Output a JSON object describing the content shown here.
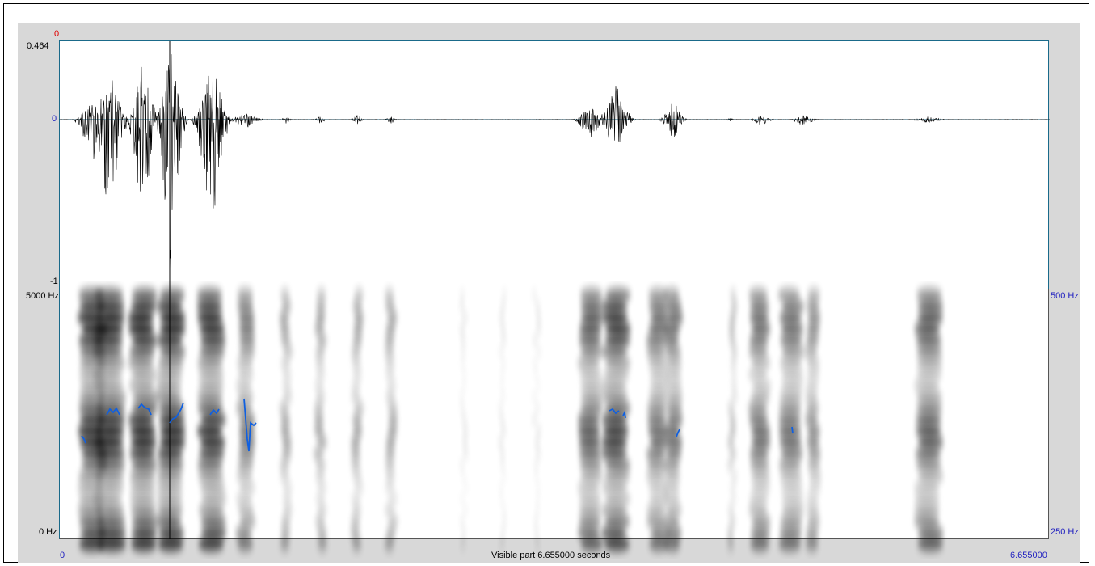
{
  "waveform": {
    "top_value_label": "0",
    "y_max_label": "0.464",
    "y_zero_label": "0",
    "y_min_label": "-1"
  },
  "spectrogram": {
    "freq_top_label": "5000 Hz",
    "freq_bottom_label": "0 Hz",
    "pitch_top_label": "500 Hz",
    "pitch_bottom_label": "250 Hz"
  },
  "time_axis": {
    "start_label": "0",
    "end_label": "6.655000",
    "visible_part_label": "Visible part 6.655000 seconds"
  },
  "colors": {
    "waveform": "#000000",
    "pitch": "#1060e0",
    "axis_red": "#e00000",
    "axis_blue": "#2020c0",
    "panel_border": "#1a6a8a"
  }
}
